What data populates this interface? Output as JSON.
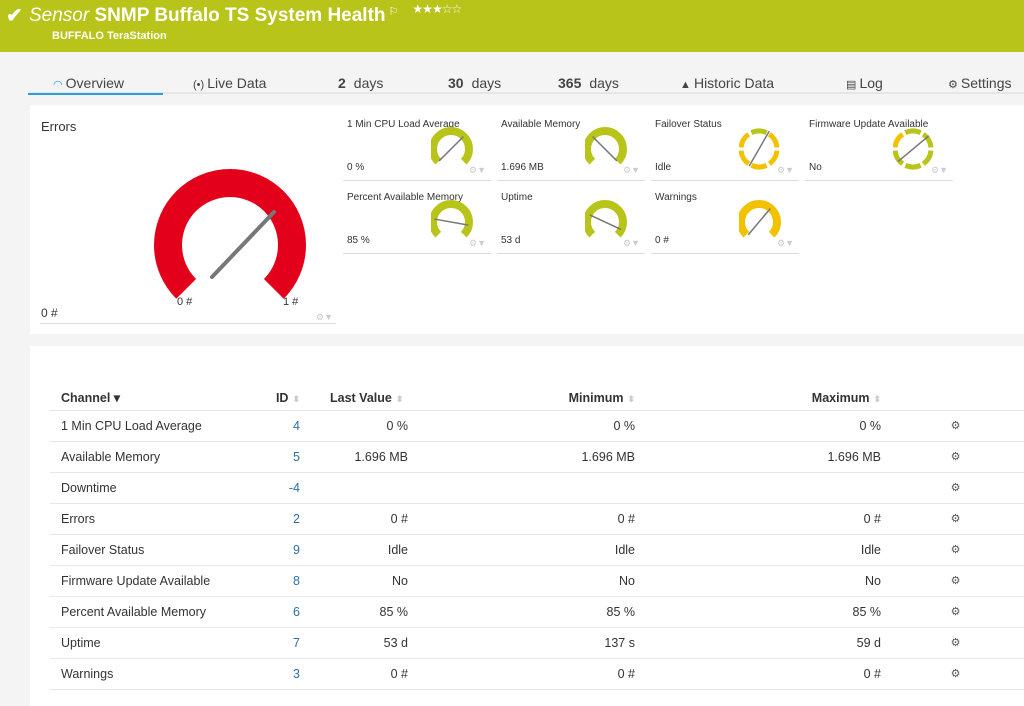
{
  "header": {
    "status_icon": "check-icon",
    "prefix": "Sensor",
    "title": "SNMP Buffalo TS System Health",
    "flag_icon": "flag-icon",
    "rating": 3,
    "rating_max": 5,
    "device": "BUFFALO TeraStation",
    "color": "#b9c41a"
  },
  "tabs": [
    {
      "label": "Overview",
      "icon": "gauge-icon",
      "active": true
    },
    {
      "label": "Live Data",
      "icon": "broadcast-icon"
    },
    {
      "num": "2",
      "label": "days"
    },
    {
      "num": "30",
      "label": "days"
    },
    {
      "num": "365",
      "label": "days"
    },
    {
      "label": "Historic Data",
      "icon": "area-chart-icon"
    },
    {
      "label": "Log",
      "icon": "list-icon"
    },
    {
      "label": "Settings",
      "icon": "gear-icon"
    }
  ],
  "big_gauge": {
    "title": "Errors",
    "value": "0 #",
    "min_label": "0 #",
    "max_label": "1 #",
    "color": "#e3001b"
  },
  "gauges": [
    {
      "title": "1 Min CPU Load Average",
      "value": "0 %",
      "color": "#b9c41a"
    },
    {
      "title": "Available Memory",
      "value": "1.696 MB",
      "color": "#b9c41a"
    },
    {
      "title": "Failover Status",
      "value": "Idle",
      "color": "#f2c200"
    },
    {
      "title": "Firmware Update Available",
      "value": "No",
      "color": "#b9c41a"
    },
    {
      "title": "Percent Available Memory",
      "value": "85 %",
      "color": "#b9c41a"
    },
    {
      "title": "Uptime",
      "value": "53 d",
      "color": "#b9c41a"
    },
    {
      "title": "Warnings",
      "value": "0 #",
      "color": "#f2c200"
    }
  ],
  "table": {
    "headers": {
      "channel": "Channel",
      "id": "ID",
      "last": "Last Value",
      "min": "Minimum",
      "max": "Maximum"
    },
    "rows": [
      {
        "channel": "1 Min CPU Load Average",
        "id": "4",
        "last": "0 %",
        "min": "0 %",
        "max": "0 %"
      },
      {
        "channel": "Available Memory",
        "id": "5",
        "last": "1.696 MB",
        "min": "1.696 MB",
        "max": "1.696 MB"
      },
      {
        "channel": "Downtime",
        "id": "-4",
        "last": "",
        "min": "",
        "max": ""
      },
      {
        "channel": "Errors",
        "id": "2",
        "last": "0 #",
        "min": "0 #",
        "max": "0 #"
      },
      {
        "channel": "Failover Status",
        "id": "9",
        "last": "Idle",
        "min": "Idle",
        "max": "Idle"
      },
      {
        "channel": "Firmware Update Available",
        "id": "8",
        "last": "No",
        "min": "No",
        "max": "No"
      },
      {
        "channel": "Percent Available Memory",
        "id": "6",
        "last": "85 %",
        "min": "85 %",
        "max": "85 %"
      },
      {
        "channel": "Uptime",
        "id": "7",
        "last": "53 d",
        "min": "137 s",
        "max": "59 d"
      },
      {
        "channel": "Warnings",
        "id": "3",
        "last": "0 #",
        "min": "0 #",
        "max": "0 #"
      }
    ]
  }
}
